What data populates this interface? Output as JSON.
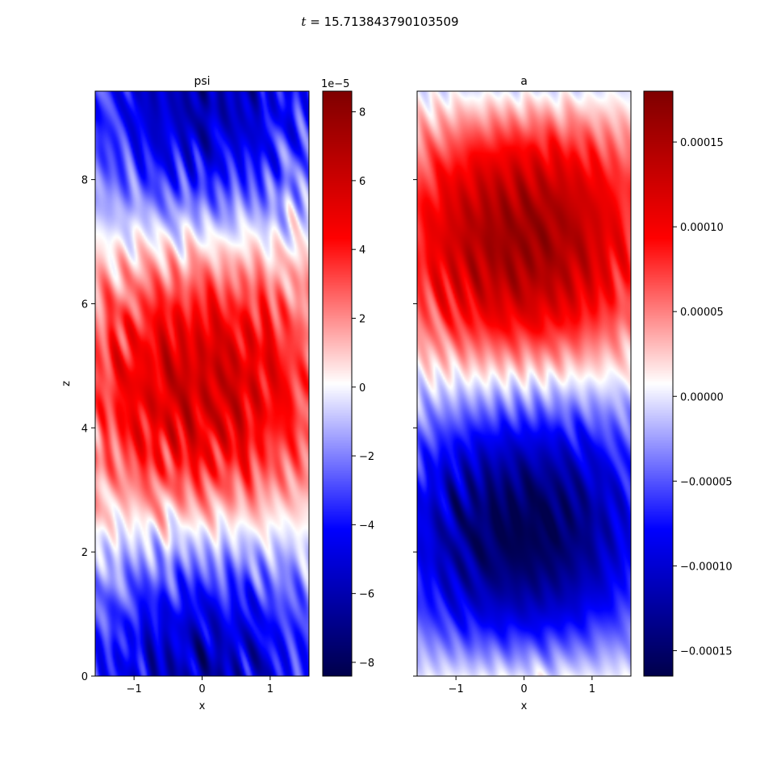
{
  "figure": {
    "suptitle_symbol": "t",
    "suptitle_eq": " = ",
    "suptitle_value": "15.713843790103509",
    "cmap": [
      "#00004c",
      "#0000ff",
      "#ffffff",
      "#ff0000",
      "#800000"
    ]
  },
  "chart_data": [
    {
      "type": "heatmap",
      "title": "psi",
      "xlabel": "x",
      "ylabel": "z",
      "xlim": [
        -1.5708,
        1.5708
      ],
      "ylim": [
        0,
        9.4248
      ],
      "xticks": [
        {
          "v": -1,
          "label": "−1"
        },
        {
          "v": 0,
          "label": "0"
        },
        {
          "v": 1,
          "label": "1"
        }
      ],
      "yticks": [
        {
          "v": 0,
          "label": "0"
        },
        {
          "v": 2,
          "label": "2"
        },
        {
          "v": 4,
          "label": "4"
        },
        {
          "v": 6,
          "label": "6"
        },
        {
          "v": 8,
          "label": "8"
        }
      ],
      "field": {
        "mode": "cos",
        "noise": 0.5
      },
      "colorbar": {
        "min": -8.4e-05,
        "max": 8.6e-05,
        "offset_label": "1e−5",
        "ticks": [
          {
            "v": -8e-05,
            "label": "−8"
          },
          {
            "v": -6e-05,
            "label": "−6"
          },
          {
            "v": -4e-05,
            "label": "−4"
          },
          {
            "v": -2e-05,
            "label": "−2"
          },
          {
            "v": 0,
            "label": "0"
          },
          {
            "v": 2e-05,
            "label": "2"
          },
          {
            "v": 4e-05,
            "label": "4"
          },
          {
            "v": 6e-05,
            "label": "6"
          },
          {
            "v": 8e-05,
            "label": "8"
          }
        ]
      }
    },
    {
      "type": "heatmap",
      "title": "a",
      "xlabel": "x",
      "ylabel": "",
      "xlim": [
        -1.5708,
        1.5708
      ],
      "ylim": [
        0,
        9.4248
      ],
      "xticks": [
        {
          "v": -1,
          "label": "−1"
        },
        {
          "v": 0,
          "label": "0"
        },
        {
          "v": 1,
          "label": "1"
        }
      ],
      "yticks": [
        {
          "v": 0,
          "label": ""
        },
        {
          "v": 2,
          "label": ""
        },
        {
          "v": 4,
          "label": ""
        },
        {
          "v": 6,
          "label": ""
        },
        {
          "v": 8,
          "label": ""
        }
      ],
      "field": {
        "mode": "sin",
        "noise": 0.25
      },
      "colorbar": {
        "min": -0.000165,
        "max": 0.00018,
        "offset_label": "",
        "ticks": [
          {
            "v": -0.00015,
            "label": "−0.00015"
          },
          {
            "v": -0.0001,
            "label": "−0.00010"
          },
          {
            "v": -5e-05,
            "label": "−0.00005"
          },
          {
            "v": 0,
            "label": "0.00000"
          },
          {
            "v": 5e-05,
            "label": "0.00005"
          },
          {
            "v": 0.0001,
            "label": "0.00010"
          },
          {
            "v": 0.00015,
            "label": "0.00015"
          }
        ]
      }
    }
  ]
}
